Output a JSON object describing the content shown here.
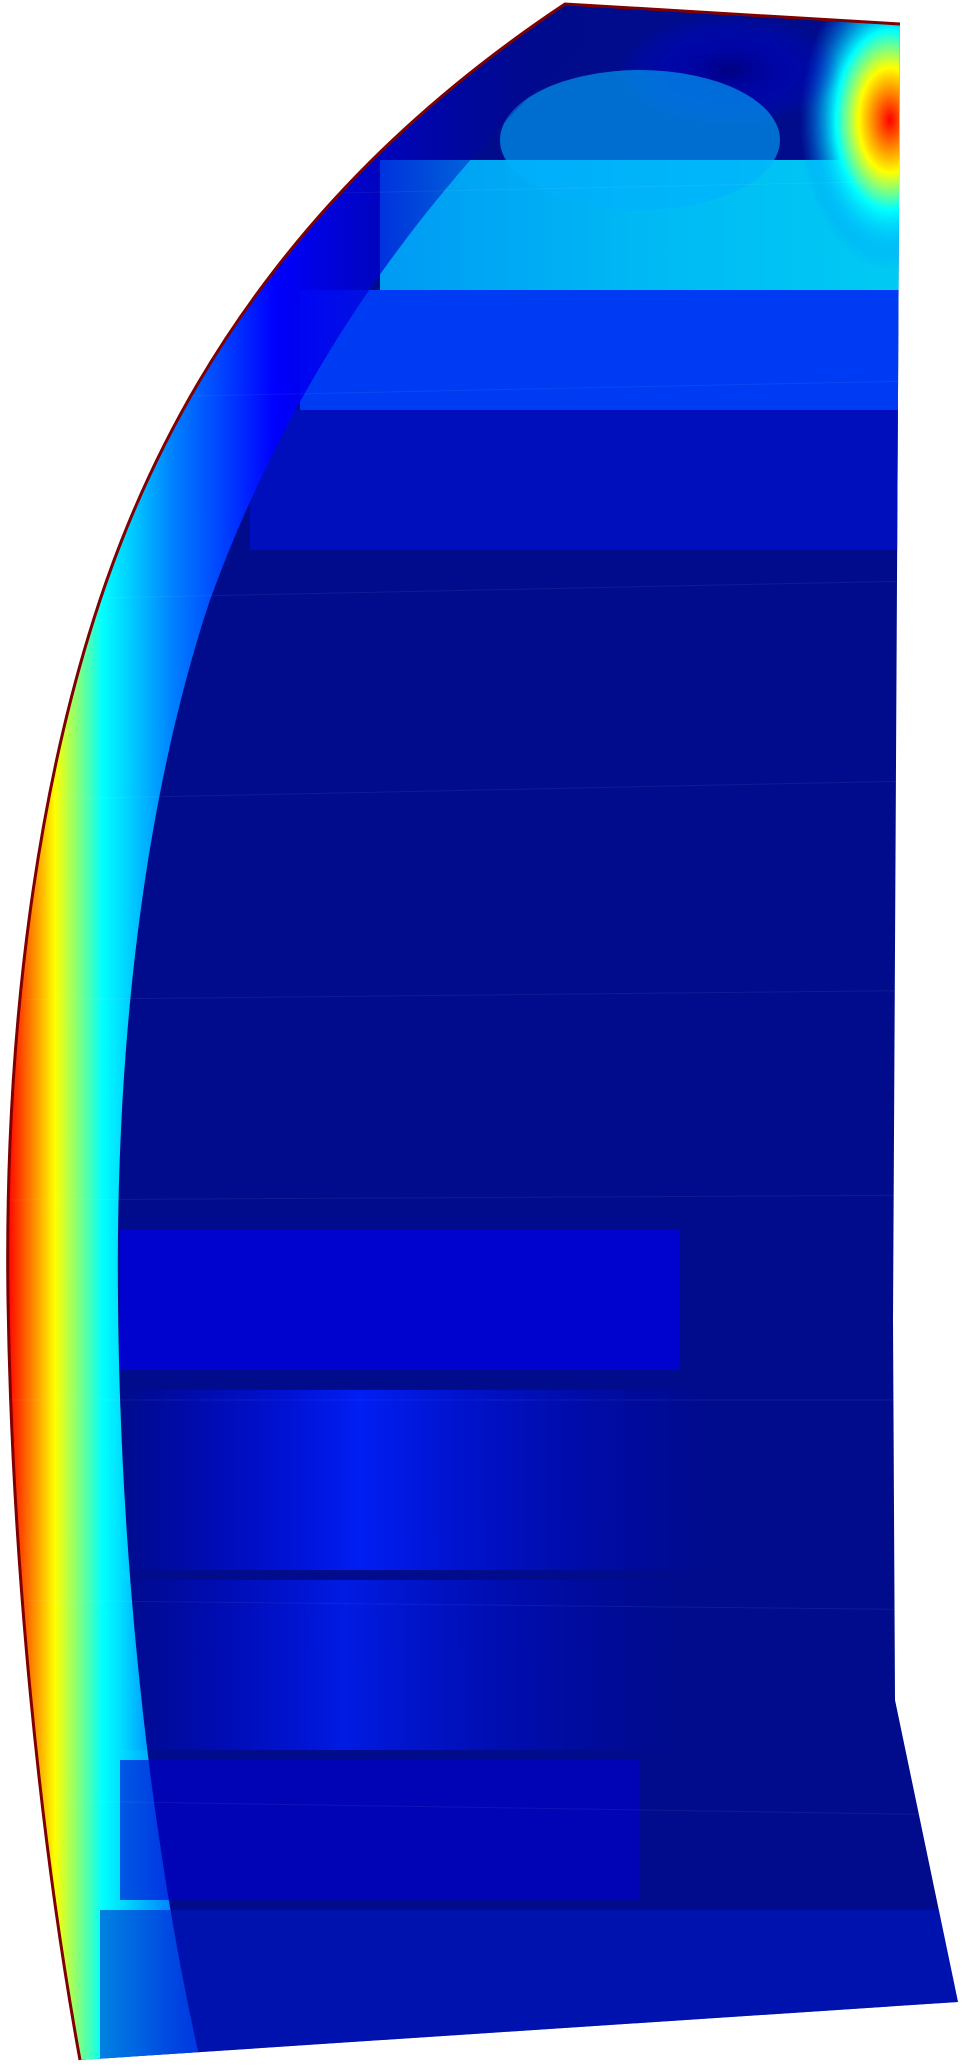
{
  "scene": {
    "subject": "sail-surface-colormap",
    "background_color": "#ffffff",
    "colormap": "jet",
    "colormap_stops": [
      "#00007f",
      "#0000ff",
      "#007fff",
      "#00ffff",
      "#7fff7f",
      "#ffff00",
      "#ff7f00",
      "#ff0000",
      "#7f0000"
    ],
    "edge_color": "#7f0000"
  }
}
